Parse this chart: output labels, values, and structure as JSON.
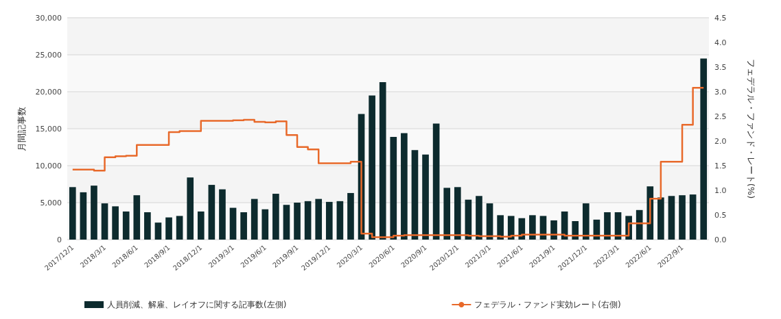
{
  "chart_data": {
    "type": "bar",
    "ylabel": "月間記事数",
    "y2label": "フェデラル・ファンド・レート(%)",
    "categories": [
      "2017/12/1",
      null,
      null,
      "2018/3/1",
      null,
      null,
      "2018/6/1",
      null,
      null,
      "2018/9/1",
      null,
      null,
      "2018/12/1",
      null,
      null,
      "2019/3/1",
      null,
      null,
      "2019/6/1",
      null,
      null,
      "2019/9/1",
      null,
      null,
      "2019/12/1",
      null,
      null,
      "2020/3/1",
      null,
      null,
      "2020/6/1",
      null,
      null,
      "2020/9/1",
      null,
      null,
      "2020/12/1",
      null,
      null,
      "2021/3/1",
      null,
      null,
      "2021/6/1",
      null,
      null,
      "2021/9/1",
      null,
      null,
      "2021/12/1",
      null,
      null,
      "2022/3/1",
      null,
      null,
      "2022/6/1",
      null,
      null,
      "2022/9/1",
      null,
      null
    ],
    "series": [
      {
        "name": "人員削減、解雇、レイオフに関する記事数(左側)",
        "color": "#0d2b2e",
        "values": [
          7100,
          6400,
          7300,
          4900,
          4500,
          3800,
          6000,
          3700,
          2300,
          3000,
          3200,
          8400,
          3800,
          7400,
          6800,
          4300,
          3700,
          5500,
          4100,
          6200,
          4700,
          5000,
          5200,
          5500,
          5100,
          5200,
          6300,
          17000,
          19500,
          21300,
          13900,
          14400,
          12100,
          11500,
          15700,
          7000,
          7100,
          5400,
          5900,
          4900,
          3300,
          3200,
          2900,
          3300,
          3200,
          2600,
          3800,
          2500,
          4900,
          2700,
          3700,
          3700,
          3200,
          4000,
          7200,
          5700,
          5900,
          6000,
          6100,
          24500
        ]
      },
      {
        "name": "フェデラル・ファンド実効レート(右側)",
        "type": "step",
        "axis": "y2",
        "color": "#e8692a",
        "values": [
          1.42,
          1.42,
          1.4,
          1.67,
          1.69,
          1.7,
          1.92,
          1.92,
          1.92,
          2.18,
          2.2,
          2.2,
          2.41,
          2.41,
          2.41,
          2.42,
          2.43,
          2.39,
          2.38,
          2.4,
          2.12,
          1.88,
          1.83,
          1.55,
          1.55,
          1.55,
          1.58,
          0.12,
          0.05,
          0.05,
          0.08,
          0.09,
          0.09,
          0.09,
          0.09,
          0.09,
          0.09,
          0.08,
          0.07,
          0.07,
          0.06,
          0.08,
          0.1,
          0.1,
          0.1,
          0.1,
          0.08,
          0.08,
          0.08,
          0.08,
          0.08,
          0.08,
          0.33,
          0.33,
          0.83,
          1.58,
          1.58,
          2.33,
          3.08,
          3.08
        ]
      }
    ],
    "ylim": [
      0,
      30000
    ],
    "yticks": [
      {
        "value": 0,
        "label": "0"
      },
      {
        "value": 5000,
        "label": "5,000"
      },
      {
        "value": 10000,
        "label": "10,000"
      },
      {
        "value": 15000,
        "label": "15,000"
      },
      {
        "value": 20000,
        "label": "20,000"
      },
      {
        "value": 25000,
        "label": "25,000"
      },
      {
        "value": 30000,
        "label": "30,000"
      }
    ],
    "y2lim": [
      0,
      4.5
    ],
    "y2ticks": [
      {
        "value": 0,
        "label": "0.0"
      },
      {
        "value": 0.5,
        "label": "0.5"
      },
      {
        "value": 1,
        "label": "1.0"
      },
      {
        "value": 1.5,
        "label": "1.5"
      },
      {
        "value": 2,
        "label": "2.0"
      },
      {
        "value": 2.5,
        "label": "2.5"
      },
      {
        "value": 3,
        "label": "3.0"
      },
      {
        "value": 3.5,
        "label": "3.5"
      },
      {
        "value": 4,
        "label": "4.0"
      },
      {
        "value": 4.5,
        "label": "4.5"
      }
    ],
    "grid": "y",
    "legend": "bottom left"
  }
}
